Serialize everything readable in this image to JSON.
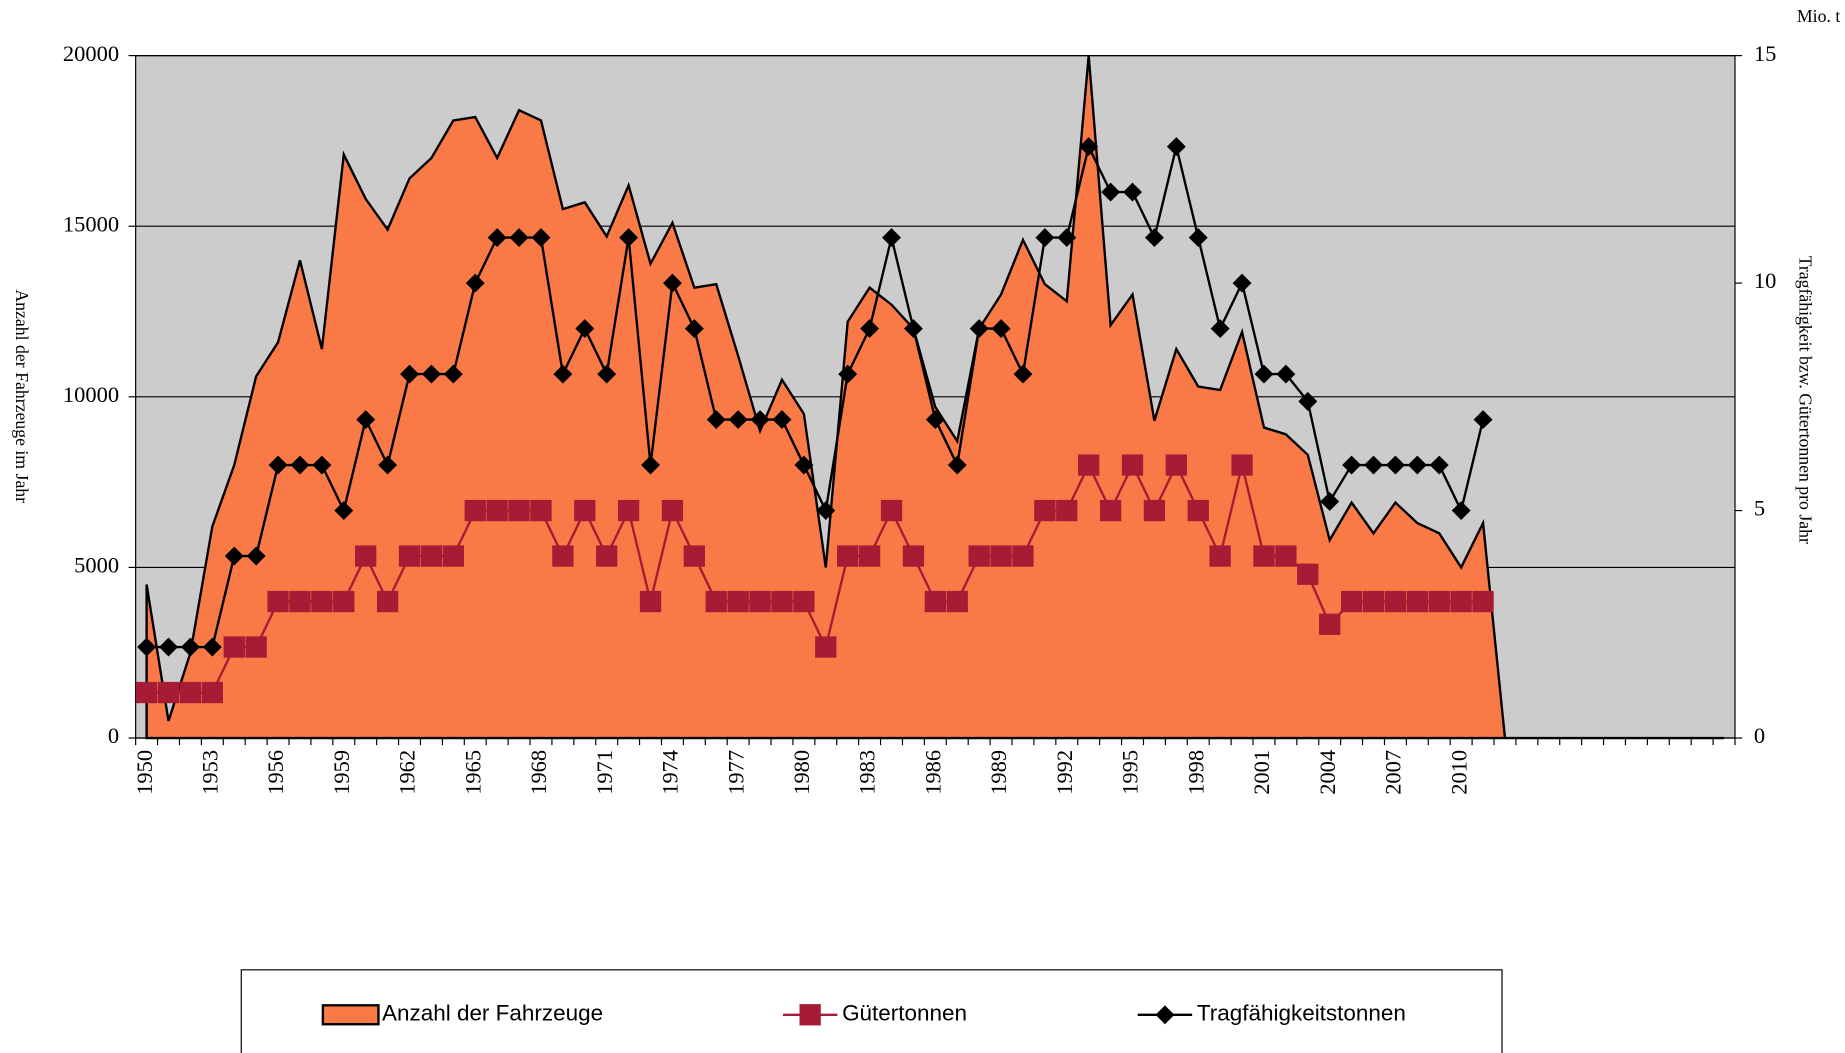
{
  "chart_data": {
    "type": "area",
    "y_label": "Anzahl der Fahrzeuge im Jahr",
    "y2_label": "Tragfähigkeit bzw. Gütertonnen pro Jahr",
    "y2_unit": "Mio. t",
    "categories": [
      "1950",
      null,
      null,
      "1953",
      null,
      null,
      "1956",
      null,
      null,
      "1959",
      null,
      null,
      "1962",
      null,
      null,
      "1965",
      null,
      null,
      "1968",
      null,
      null,
      "1971",
      null,
      null,
      "1974",
      null,
      null,
      "1977",
      null,
      null,
      "1980",
      null,
      null,
      "1983",
      null,
      null,
      "1986",
      null,
      null,
      "1989",
      null,
      null,
      "1992",
      null,
      null,
      "1995",
      null,
      null,
      "1998",
      null,
      null,
      "2001",
      null,
      null,
      "2004",
      null,
      null,
      "2007",
      null,
      null,
      "2010",
      null,
      null,
      null,
      null,
      null,
      null,
      null,
      null,
      null,
      null,
      null,
      null
    ],
    "series": [
      {
        "name": "Anzahl der Fahrzeuge",
        "type": "area",
        "color": "#f97a47",
        "values": [
          4500,
          500,
          2500,
          6200,
          8000,
          10600,
          11600,
          14000,
          11400,
          17100,
          15800,
          14900,
          16400,
          17000,
          18100,
          18200,
          17000,
          18400,
          18100,
          15500,
          15700,
          14700,
          16200,
          13900,
          15100,
          13200,
          13300,
          11200,
          9000,
          10500,
          9500,
          5000,
          12200,
          13200,
          12700,
          12000,
          9700,
          8700,
          12000,
          13000,
          14600,
          13300,
          12800,
          20000,
          12100,
          13000,
          9300,
          11400,
          10300,
          10200,
          11900,
          9100,
          8900,
          8300,
          5800,
          6900,
          6000,
          6900,
          6300,
          6000,
          5000,
          6300,
          0,
          0,
          0,
          0,
          0,
          0,
          0,
          0,
          0,
          0,
          0
        ]
      },
      {
        "name": "Gütertonnen",
        "type": "line",
        "marker": "square",
        "axis": "y2",
        "color": "#a51c34",
        "values": [
          1,
          1,
          1,
          1,
          2,
          2,
          3,
          3,
          3,
          3,
          4,
          3,
          4,
          4,
          4,
          5,
          5,
          5,
          5,
          4,
          5,
          4,
          5,
          3,
          5,
          4,
          3,
          3,
          3,
          3,
          3,
          2,
          4,
          4,
          5,
          4,
          3,
          3,
          4,
          4,
          4,
          5,
          5,
          6,
          5,
          6,
          5,
          6,
          5,
          4,
          6,
          4,
          4,
          3.6,
          2.5,
          3,
          3,
          3,
          3,
          3,
          3,
          3,
          null,
          null,
          null,
          null,
          null,
          null,
          null,
          null,
          null,
          null,
          null
        ]
      },
      {
        "name": "Tragfähigkeitstonnen",
        "type": "line",
        "marker": "diamond",
        "axis": "y2",
        "color": "#000000",
        "values": [
          2,
          2,
          2,
          2,
          4,
          4,
          6,
          6,
          6,
          5,
          7,
          6,
          8,
          8,
          8,
          10,
          11,
          11,
          11,
          8,
          9,
          8,
          11,
          6,
          10,
          9,
          7,
          7,
          7,
          7,
          6,
          5,
          8,
          9,
          11,
          9,
          7,
          6,
          9,
          9,
          8,
          11,
          11,
          13,
          12,
          12,
          11,
          13,
          11,
          9,
          10,
          8,
          8,
          7.4,
          5.2,
          6,
          6,
          6,
          6,
          6,
          5,
          7,
          null,
          null,
          null,
          null,
          null,
          null,
          null,
          null,
          null,
          null,
          null
        ]
      }
    ],
    "ylim": [
      0,
      20000
    ],
    "yticks": [
      0,
      5000,
      10000,
      15000,
      20000
    ],
    "y2lim": [
      0,
      15
    ],
    "y2ticks": [
      0,
      5,
      10,
      15
    ],
    "grid": true,
    "background": "#cccccc",
    "legend": "bottom"
  }
}
